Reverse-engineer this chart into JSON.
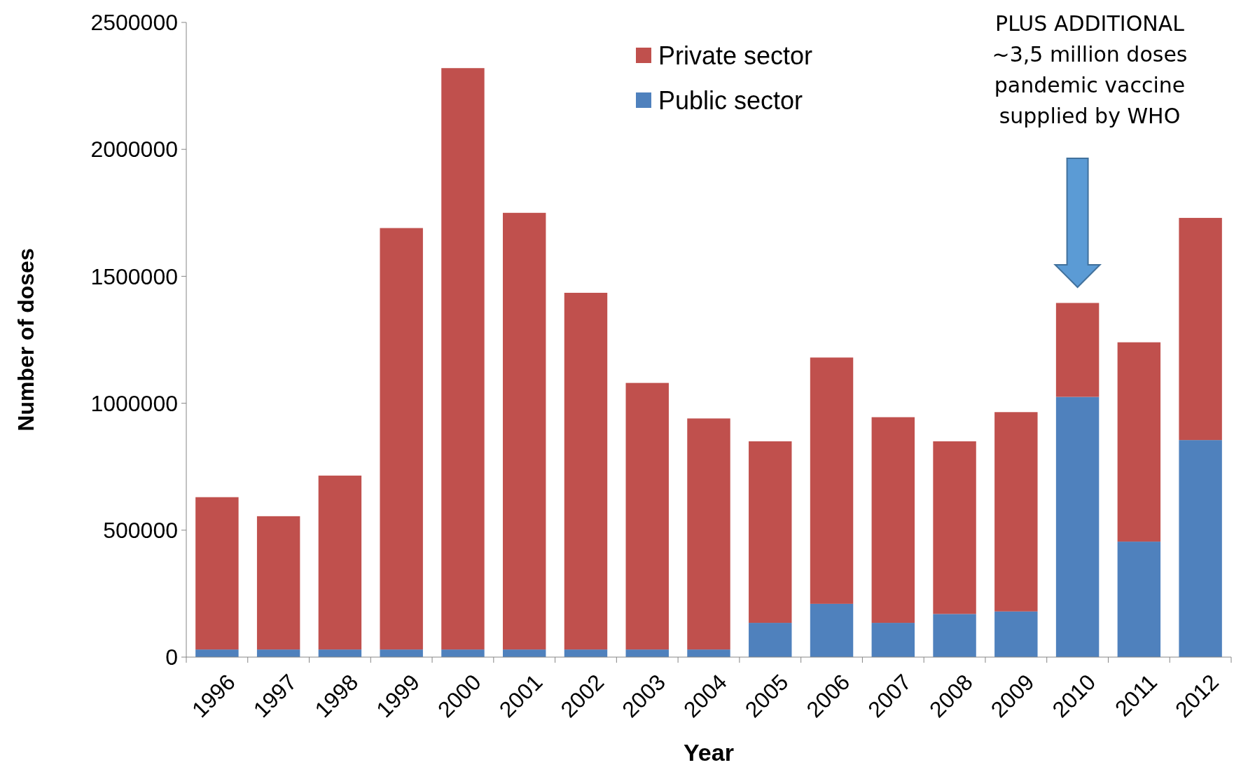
{
  "chart_data": {
    "type": "bar",
    "stacked": true,
    "xlabel": "Year",
    "ylabel": "Number of doses",
    "categories": [
      "1996",
      "1997",
      "1998",
      "1999",
      "2000",
      "2001",
      "2002",
      "2003",
      "2004",
      "2005",
      "2006",
      "2007",
      "2008",
      "2009",
      "2010",
      "2011",
      "2012"
    ],
    "series": [
      {
        "name": "Public sector",
        "color": "#4f81bd",
        "values": [
          30000,
          30000,
          30000,
          30000,
          30000,
          30000,
          30000,
          30000,
          30000,
          135000,
          210000,
          135000,
          170000,
          180000,
          1025000,
          455000,
          855000
        ]
      },
      {
        "name": "Private sector",
        "color": "#c0504d",
        "values": [
          600000,
          525000,
          685000,
          1660000,
          2290000,
          1720000,
          1405000,
          1050000,
          910000,
          715000,
          970000,
          810000,
          680000,
          785000,
          370000,
          785000,
          875000
        ]
      }
    ],
    "ylim": [
      0,
      2500000
    ],
    "yticks": [
      0,
      500000,
      1000000,
      1500000,
      2000000,
      2500000
    ],
    "legend": "top",
    "annotations": [
      "PLUS ADDITIONAL\n~3,5 million doses\npandemic vaccine\nsupplied by WHO"
    ]
  }
}
